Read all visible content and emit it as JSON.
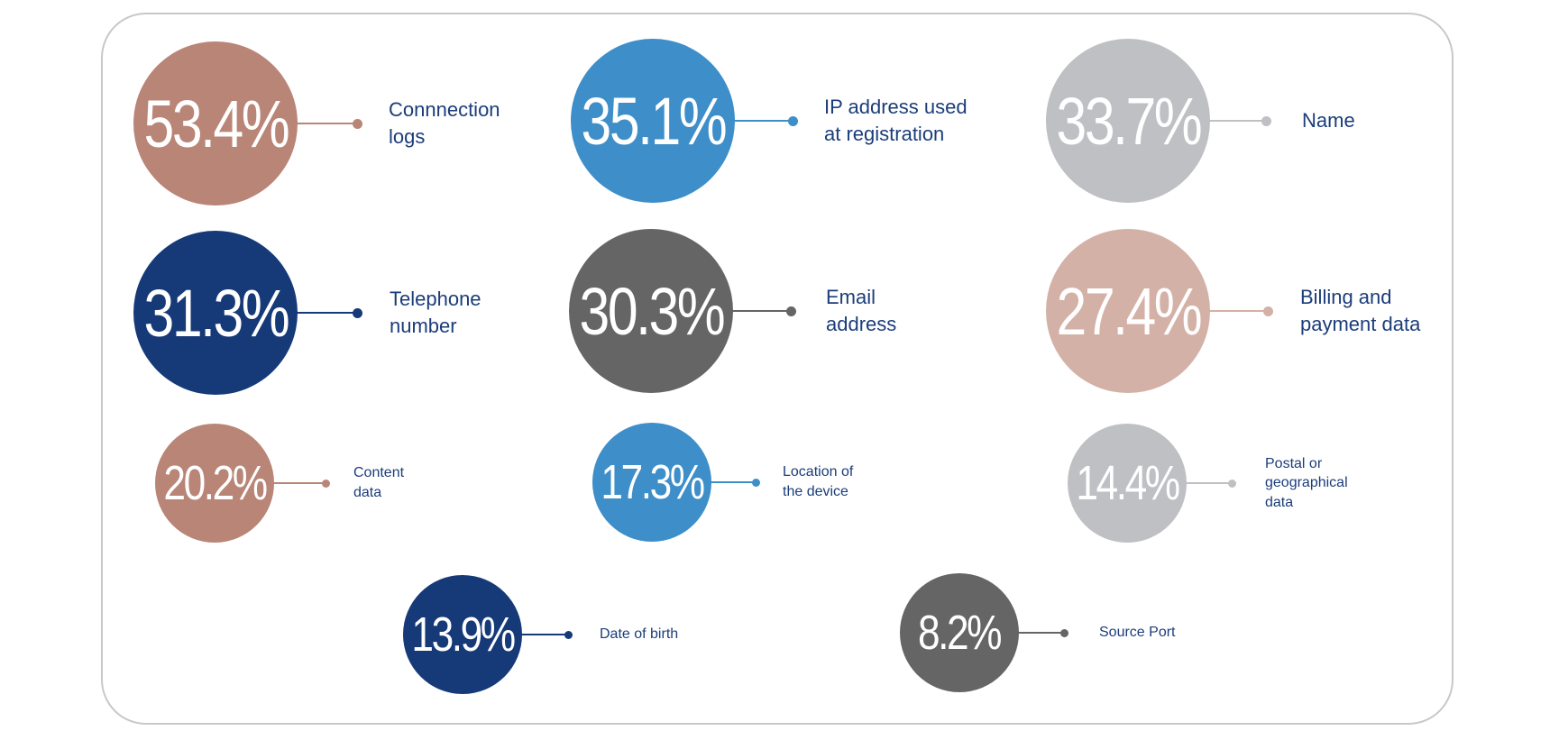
{
  "chart_data": {
    "type": "bubble",
    "unit": "%",
    "items": [
      {
        "label": "Connnection\nlogs",
        "value": 53.4,
        "display": "53.4%",
        "color": "#b98577"
      },
      {
        "label": "IP address used\nat registration",
        "value": 35.1,
        "display": "35.1%",
        "color": "#3d8ec9"
      },
      {
        "label": "Name",
        "value": 33.7,
        "display": "33.7%",
        "color": "#bfc0c3"
      },
      {
        "label": "Telephone\nnumber",
        "value": 31.3,
        "display": "31.3%",
        "color": "#163a78"
      },
      {
        "label": "Email\naddress",
        "value": 30.3,
        "display": "30.3%",
        "color": "#656565"
      },
      {
        "label": "Billing and\npayment data",
        "value": 27.4,
        "display": "27.4%",
        "color": "#d4b1a7"
      },
      {
        "label": "Content\ndata",
        "value": 20.2,
        "display": "20.2%",
        "color": "#b98577"
      },
      {
        "label": "Location of\nthe device",
        "value": 17.3,
        "display": "17.3%",
        "color": "#3d8ec9"
      },
      {
        "label": "Postal or\ngeographical\ndata",
        "value": 14.4,
        "display": "14.4%",
        "color": "#bfc0c3"
      },
      {
        "label": "Date of birth",
        "value": 13.9,
        "display": "13.9%",
        "color": "#163a78"
      },
      {
        "label": "Source Port",
        "value": 8.2,
        "display": "8.2%",
        "color": "#656565"
      }
    ]
  }
}
